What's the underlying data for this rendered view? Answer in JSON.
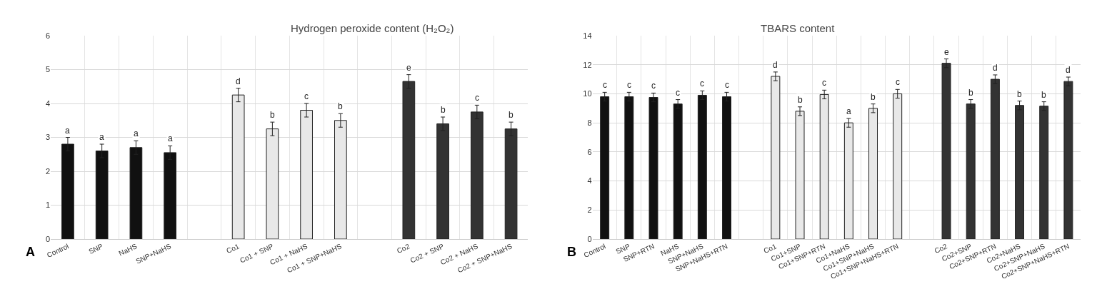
{
  "chart_data": [
    {
      "type": "bar",
      "title": "Hydrogen peroxide content (H₂O₂)",
      "categories": [
        "Control",
        "SNP",
        "NaHS",
        "SNP+NaHS",
        null,
        "Co1",
        "Co1 + SNP",
        "Co1 + NaHS",
        "Co1 + SNP+NaHS",
        null,
        "Co2",
        "Co2 + SNP",
        "Co2 + NaHS",
        "Co2 + SNP+NaHS"
      ],
      "values": [
        2.8,
        2.6,
        2.7,
        2.55,
        null,
        4.25,
        3.25,
        3.8,
        3.5,
        null,
        4.65,
        3.4,
        3.75,
        3.25
      ],
      "errors": [
        0.2,
        0.2,
        0.2,
        0.2,
        null,
        0.2,
        0.2,
        0.2,
        0.2,
        null,
        0.2,
        0.2,
        0.2,
        0.2
      ],
      "value_labels": [
        "a",
        "a",
        "a",
        "a",
        null,
        "d",
        "b",
        "c",
        "b",
        null,
        "e",
        "b",
        "c",
        "b"
      ],
      "colors": [
        "#111111",
        "#111111",
        "#111111",
        "#111111",
        "#ffffff",
        "#e8e8e8",
        "#e8e8e8",
        "#e8e8e8",
        "#e8e8e8",
        "#ffffff",
        "#333333",
        "#333333",
        "#333333",
        "#333333"
      ],
      "ylim": [
        0,
        6
      ],
      "yticks": [
        0,
        1,
        2,
        3,
        4,
        5,
        6
      ],
      "grid": true,
      "annotations": [
        "A"
      ]
    },
    {
      "type": "bar",
      "title": "TBARS content",
      "categories": [
        "Control",
        "SNP",
        "SNP+RTN",
        "NaHS",
        "SNP+NaHS",
        "SNP+NaHS+RTN",
        null,
        "Co1",
        "Co1+SNP",
        "Co1+SNP+RTN",
        "Co1+NaHS",
        "Co1+SNP+NaHS",
        "Co1+SNP+NaHS+RTN",
        null,
        "Co2",
        "Co2+SNP",
        "Co2+SNP+RTN",
        "Co2+NaHS",
        "Co2+SNP+NaHS",
        "Co2+SNP+NaHS+RTN"
      ],
      "values": [
        9.8,
        9.8,
        9.75,
        9.3,
        9.9,
        9.8,
        null,
        11.2,
        8.8,
        9.95,
        8.0,
        9.0,
        10.0,
        null,
        12.1,
        9.3,
        11.0,
        9.2,
        9.15,
        10.85
      ],
      "errors": [
        0.3,
        0.3,
        0.3,
        0.3,
        0.3,
        0.3,
        null,
        0.3,
        0.3,
        0.3,
        0.3,
        0.3,
        0.3,
        null,
        0.3,
        0.3,
        0.3,
        0.3,
        0.3,
        0.3
      ],
      "value_labels": [
        "c",
        "c",
        "c",
        "c",
        "c",
        "c",
        null,
        "d",
        "b",
        "c",
        "a",
        "b",
        "c",
        null,
        "e",
        "b",
        "d",
        "b",
        "b",
        "d"
      ],
      "colors": [
        "#111111",
        "#111111",
        "#111111",
        "#111111",
        "#111111",
        "#111111",
        "#ffffff",
        "#e8e8e8",
        "#e8e8e8",
        "#e8e8e8",
        "#e8e8e8",
        "#e8e8e8",
        "#e8e8e8",
        "#ffffff",
        "#333333",
        "#333333",
        "#333333",
        "#333333",
        "#333333",
        "#333333"
      ],
      "ylim": [
        0,
        14
      ],
      "yticks": [
        0,
        2,
        4,
        6,
        8,
        10,
        12,
        14
      ],
      "grid": true,
      "annotations": [
        "B"
      ]
    }
  ]
}
